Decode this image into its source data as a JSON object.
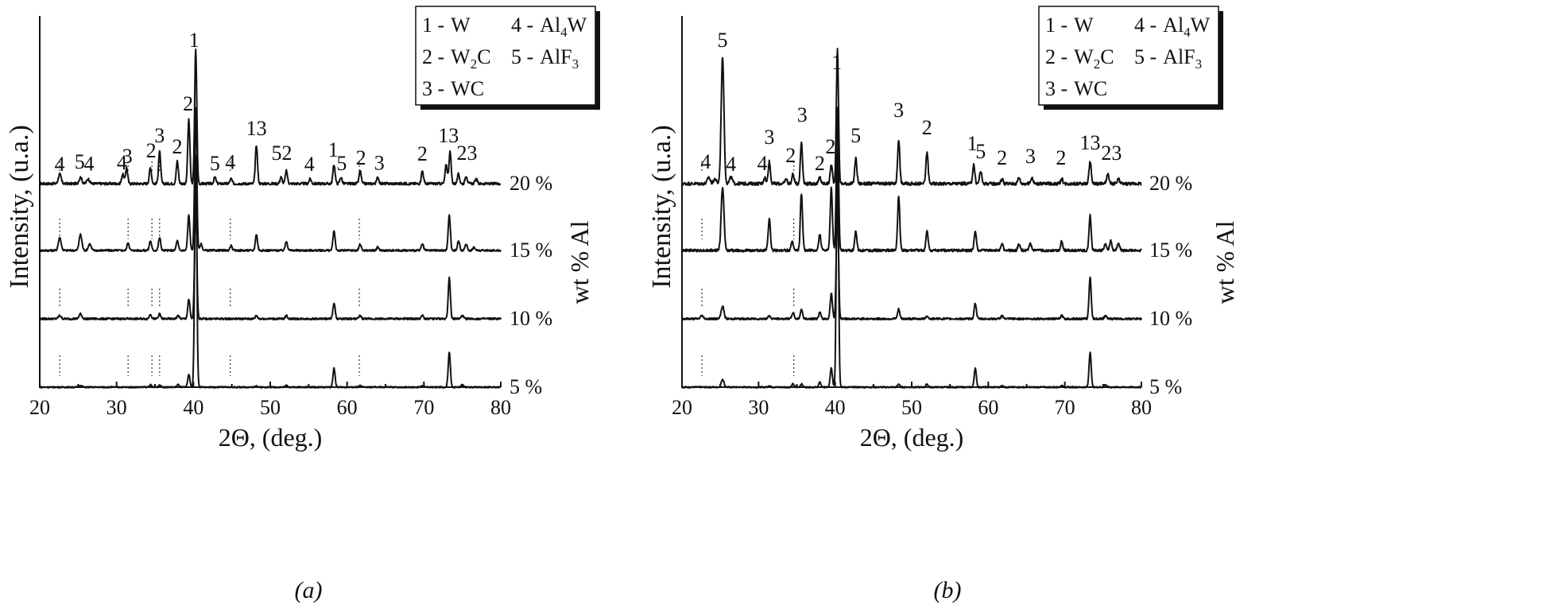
{
  "chart_data": [
    {
      "type": "line",
      "caption": "(a)",
      "xlabel": "2Θ, (deg.)",
      "ylabel": "Intensity, (u.a.)",
      "right_label": "wt % Al",
      "xlim": [
        20,
        80
      ],
      "xticks": [
        20,
        30,
        40,
        50,
        60,
        70,
        80
      ],
      "grid": false,
      "legend_position": "top-right",
      "legend": [
        {
          "num": "1 -",
          "main": "W",
          "sub": ""
        },
        {
          "num": "4 -",
          "main": "Al",
          "sub": "4",
          "tail": "W"
        },
        {
          "num": "2 -",
          "main": "W",
          "sub": "2",
          "tail": "C"
        },
        {
          "num": "5 -",
          "main": "AlF",
          "sub": "3",
          "tail": ""
        },
        {
          "num": "3 -",
          "main": "WC",
          "sub": ""
        }
      ],
      "series": [
        {
          "name": "20 %",
          "baseline": 0.64,
          "noise": 0.004,
          "peaks": [
            [
              22.6,
              0.03
            ],
            [
              25.3,
              0.02
            ],
            [
              26.3,
              0.015
            ],
            [
              30.8,
              0.03
            ],
            [
              31.3,
              0.05
            ],
            [
              34.4,
              0.05
            ],
            [
              35.6,
              0.1
            ],
            [
              37.9,
              0.07
            ],
            [
              39.4,
              0.2
            ],
            [
              40.3,
              0.42
            ],
            [
              42.8,
              0.02
            ],
            [
              44.9,
              0.015
            ],
            [
              48.2,
              0.12
            ],
            [
              51.4,
              0.02
            ],
            [
              52.1,
              0.04
            ],
            [
              55.2,
              0.015
            ],
            [
              58.3,
              0.06
            ],
            [
              59.2,
              0.02
            ],
            [
              61.7,
              0.04
            ],
            [
              64.0,
              0.02
            ],
            [
              69.8,
              0.04
            ],
            [
              72.9,
              0.06
            ],
            [
              73.4,
              0.1
            ],
            [
              74.5,
              0.03
            ],
            [
              75.5,
              0.025
            ],
            [
              76.8,
              0.015
            ]
          ]
        },
        {
          "name": "15 %",
          "baseline": 0.43,
          "noise": 0.003,
          "peaks": [
            [
              22.6,
              0.04
            ],
            [
              25.3,
              0.05
            ],
            [
              26.5,
              0.02
            ],
            [
              31.5,
              0.025
            ],
            [
              34.4,
              0.03
            ],
            [
              35.6,
              0.04
            ],
            [
              37.9,
              0.03
            ],
            [
              39.4,
              0.11
            ],
            [
              40.3,
              0.45
            ],
            [
              41.0,
              0.02
            ],
            [
              44.9,
              0.015
            ],
            [
              48.2,
              0.05
            ],
            [
              52.1,
              0.03
            ],
            [
              58.3,
              0.06
            ],
            [
              61.7,
              0.02
            ],
            [
              64.0,
              0.01
            ],
            [
              69.8,
              0.02
            ],
            [
              73.3,
              0.11
            ],
            [
              74.5,
              0.03
            ],
            [
              75.5,
              0.02
            ],
            [
              76.5,
              0.01
            ]
          ]
        },
        {
          "name": "10 %",
          "baseline": 0.215,
          "noise": 0.003,
          "peaks": [
            [
              22.6,
              0.01
            ],
            [
              25.3,
              0.015
            ],
            [
              34.4,
              0.015
            ],
            [
              35.6,
              0.015
            ],
            [
              38.0,
              0.01
            ],
            [
              39.4,
              0.06
            ],
            [
              40.3,
              0.38
            ],
            [
              48.2,
              0.01
            ],
            [
              52.1,
              0.01
            ],
            [
              58.3,
              0.05
            ],
            [
              61.7,
              0.01
            ],
            [
              69.8,
              0.01
            ],
            [
              73.3,
              0.13
            ],
            [
              75.0,
              0.01
            ]
          ]
        },
        {
          "name": "5 %",
          "baseline": 0.0,
          "noise": 0.002,
          "peaks": [
            [
              25.3,
              0.005
            ],
            [
              34.4,
              0.007
            ],
            [
              35.6,
              0.007
            ],
            [
              38.0,
              0.008
            ],
            [
              39.4,
              0.04
            ],
            [
              40.3,
              0.73
            ],
            [
              48.2,
              0.005
            ],
            [
              52.1,
              0.005
            ],
            [
              58.3,
              0.06
            ],
            [
              61.7,
              0.005
            ],
            [
              69.8,
              0.005
            ],
            [
              73.3,
              0.11
            ],
            [
              75.0,
              0.008
            ]
          ]
        }
      ],
      "peak_labels": [
        {
          "x": 22.6,
          "text": "4",
          "y": 0.68
        },
        {
          "x": 25.2,
          "text": "5",
          "y": 0.687
        },
        {
          "x": 26.4,
          "text": "4",
          "y": 0.681
        },
        {
          "x": 30.7,
          "text": "4",
          "y": 0.685
        },
        {
          "x": 31.4,
          "text": "3",
          "y": 0.705
        },
        {
          "x": 34.5,
          "text": "2",
          "y": 0.723
        },
        {
          "x": 35.6,
          "text": "3",
          "y": 0.77
        },
        {
          "x": 37.9,
          "text": "2",
          "y": 0.735
        },
        {
          "x": 39.3,
          "text": "2",
          "y": 0.87
        },
        {
          "x": 40.1,
          "text": "1",
          "y": 1.07
        },
        {
          "x": 42.8,
          "text": "5",
          "y": 0.682
        },
        {
          "x": 44.8,
          "text": "4",
          "y": 0.686
        },
        {
          "x": 48.2,
          "text": "13",
          "y": 0.792
        },
        {
          "x": 51.5,
          "text": "52",
          "y": 0.715
        },
        {
          "x": 55.1,
          "text": "4",
          "y": 0.68
        },
        {
          "x": 58.2,
          "text": "1",
          "y": 0.725
        },
        {
          "x": 59.3,
          "text": "5",
          "y": 0.683
        },
        {
          "x": 61.8,
          "text": "2",
          "y": 0.7
        },
        {
          "x": 64.2,
          "text": "3",
          "y": 0.684
        },
        {
          "x": 69.8,
          "text": "2",
          "y": 0.712
        },
        {
          "x": 73.2,
          "text": "13",
          "y": 0.77
        },
        {
          "x": 75.6,
          "text": "23",
          "y": 0.715
        }
      ],
      "reference_lines": [
        22.6,
        31.5,
        34.6,
        35.6,
        44.8,
        61.6
      ]
    },
    {
      "type": "line",
      "caption": "(b)",
      "xlabel": "2Θ, (deg.)",
      "ylabel": "Intensity, (u.a.)",
      "right_label": "wt % Al",
      "xlim": [
        20,
        80
      ],
      "xticks": [
        20,
        30,
        40,
        50,
        60,
        70,
        80
      ],
      "grid": false,
      "legend_position": "top-right",
      "legend": [
        {
          "num": "1 -",
          "main": "W",
          "sub": ""
        },
        {
          "num": "4 -",
          "main": "Al",
          "sub": "4",
          "tail": "W"
        },
        {
          "num": "2 -",
          "main": "W",
          "sub": "2",
          "tail": "C"
        },
        {
          "num": "5 -",
          "main": "AlF",
          "sub": "3",
          "tail": ""
        },
        {
          "num": "3 -",
          "main": "WC",
          "sub": ""
        }
      ],
      "series": [
        {
          "name": "20 %",
          "baseline": 0.64,
          "noise": 0.005,
          "peaks": [
            [
              23.5,
              0.02
            ],
            [
              24.3,
              0.015
            ],
            [
              25.3,
              0.4
            ],
            [
              26.4,
              0.02
            ],
            [
              30.8,
              0.02
            ],
            [
              31.4,
              0.07
            ],
            [
              33.6,
              0.015
            ],
            [
              34.5,
              0.03
            ],
            [
              35.6,
              0.13
            ],
            [
              38.0,
              0.02
            ],
            [
              39.5,
              0.06
            ],
            [
              40.3,
              0.42
            ],
            [
              42.7,
              0.08
            ],
            [
              48.3,
              0.14
            ],
            [
              52.0,
              0.1
            ],
            [
              58.1,
              0.06
            ],
            [
              59.0,
              0.04
            ],
            [
              61.8,
              0.015
            ],
            [
              64.0,
              0.02
            ],
            [
              65.7,
              0.02
            ],
            [
              69.6,
              0.015
            ],
            [
              73.3,
              0.07
            ],
            [
              75.6,
              0.03
            ],
            [
              77.0,
              0.015
            ]
          ]
        },
        {
          "name": "15 %",
          "baseline": 0.43,
          "noise": 0.004,
          "peaks": [
            [
              25.3,
              0.2
            ],
            [
              31.4,
              0.1
            ],
            [
              34.4,
              0.03
            ],
            [
              35.6,
              0.18
            ],
            [
              38.0,
              0.05
            ],
            [
              39.5,
              0.2
            ],
            [
              40.3,
              0.45
            ],
            [
              42.7,
              0.06
            ],
            [
              48.3,
              0.17
            ],
            [
              52.0,
              0.06
            ],
            [
              58.3,
              0.06
            ],
            [
              61.8,
              0.02
            ],
            [
              64.0,
              0.02
            ],
            [
              65.5,
              0.02
            ],
            [
              69.6,
              0.03
            ],
            [
              73.3,
              0.11
            ],
            [
              75.3,
              0.02
            ],
            [
              76.0,
              0.03
            ],
            [
              77.0,
              0.025
            ]
          ]
        },
        {
          "name": "10 %",
          "baseline": 0.215,
          "noise": 0.003,
          "peaks": [
            [
              22.6,
              0.01
            ],
            [
              25.3,
              0.04
            ],
            [
              31.4,
              0.01
            ],
            [
              34.5,
              0.02
            ],
            [
              35.6,
              0.03
            ],
            [
              38.0,
              0.02
            ],
            [
              39.5,
              0.08
            ],
            [
              40.3,
              0.37
            ],
            [
              48.3,
              0.03
            ],
            [
              52.0,
              0.01
            ],
            [
              58.3,
              0.05
            ],
            [
              61.8,
              0.01
            ],
            [
              69.6,
              0.01
            ],
            [
              73.3,
              0.13
            ],
            [
              75.3,
              0.01
            ]
          ]
        },
        {
          "name": "5 %",
          "baseline": 0.0,
          "noise": 0.002,
          "peaks": [
            [
              25.3,
              0.025
            ],
            [
              31.4,
              0.005
            ],
            [
              34.5,
              0.01
            ],
            [
              35.6,
              0.01
            ],
            [
              38.0,
              0.015
            ],
            [
              39.5,
              0.06
            ],
            [
              40.3,
              0.75
            ],
            [
              48.3,
              0.01
            ],
            [
              52.0,
              0.01
            ],
            [
              58.3,
              0.06
            ],
            [
              61.8,
              0.005
            ],
            [
              69.6,
              0.005
            ],
            [
              73.3,
              0.11
            ],
            [
              75.3,
              0.008
            ]
          ]
        }
      ],
      "peak_labels": [
        {
          "x": 25.3,
          "text": "5",
          "y": 1.07
        },
        {
          "x": 23.1,
          "text": "4",
          "y": 0.687
        },
        {
          "x": 26.4,
          "text": "4",
          "y": 0.68
        },
        {
          "x": 30.5,
          "text": "4",
          "y": 0.683
        },
        {
          "x": 31.4,
          "text": "3",
          "y": 0.765
        },
        {
          "x": 34.2,
          "text": "2",
          "y": 0.707
        },
        {
          "x": 35.7,
          "text": "3",
          "y": 0.835
        },
        {
          "x": 38.0,
          "text": "2",
          "y": 0.683
        },
        {
          "x": 39.4,
          "text": "2",
          "y": 0.735
        },
        {
          "x": 40.2,
          "text": "1",
          "y": 1.0
        },
        {
          "x": 42.7,
          "text": "5",
          "y": 0.77
        },
        {
          "x": 48.3,
          "text": "3",
          "y": 0.85
        },
        {
          "x": 52.0,
          "text": "2",
          "y": 0.795
        },
        {
          "x": 57.9,
          "text": "1",
          "y": 0.745
        },
        {
          "x": 59.0,
          "text": "5",
          "y": 0.72
        },
        {
          "x": 61.8,
          "text": "2",
          "y": 0.7
        },
        {
          "x": 65.5,
          "text": "3",
          "y": 0.705
        },
        {
          "x": 69.5,
          "text": "2",
          "y": 0.7
        },
        {
          "x": 73.3,
          "text": "13",
          "y": 0.748
        },
        {
          "x": 76.1,
          "text": "23",
          "y": 0.715
        }
      ],
      "reference_lines": [
        22.6,
        34.6
      ]
    }
  ]
}
